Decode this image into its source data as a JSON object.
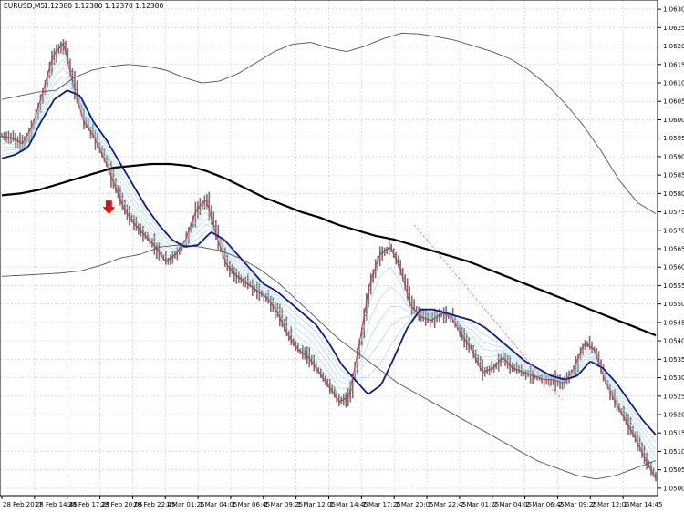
{
  "header": {
    "symbol_timeframe": "EURUSD,M5",
    "ohlc": "1.12380 1.12380 1.12370 1.12380"
  },
  "chart_data": {
    "type": "line",
    "symbol": "EURUSD",
    "timeframe": "M5",
    "grid": true,
    "ylim": [
      1.04985,
      1.0633
    ],
    "y_ticks": [
      1.06305,
      1.06255,
      1.06205,
      1.06155,
      1.06105,
      1.06055,
      1.06005,
      1.05955,
      1.05905,
      1.05855,
      1.05805,
      1.05755,
      1.05705,
      1.05655,
      1.05605,
      1.05555,
      1.05505,
      1.05455,
      1.05405,
      1.05355,
      1.05305,
      1.05255,
      1.05205,
      1.05155,
      1.05105,
      1.05055,
      1.05005
    ],
    "x_ticks": [
      "28 Feb 2017",
      "28 Feb 14:45",
      "28 Feb 17:25",
      "28 Feb 20:05",
      "28 Feb 22:45",
      "1 Mar 01:25",
      "1 Mar 04:05",
      "1 Mar 06:45",
      "1 Mar 09:25",
      "1 Mar 12:05",
      "1 Mar 14:45",
      "1 Mar 17:25",
      "1 Mar 20:05",
      "1 Mar 22:45",
      "2 Mar 01:25",
      "2 Mar 04:05",
      "2 Mar 06:45",
      "2 Mar 09:25",
      "2 Mar 12:05",
      "2 Mar 14:45"
    ],
    "n_bars": 288,
    "series": [
      {
        "values": [
          1.0596,
          1.05955,
          1.0594,
          1.0599,
          1.0608,
          1.0618,
          1.06215,
          1.061,
          1.06,
          1.0596,
          1.059,
          1.0583,
          1.0576,
          1.0572,
          1.0569,
          1.0566,
          1.0562,
          1.0564,
          1.0568,
          1.0576,
          1.0579,
          1.0569,
          1.0561,
          1.0558,
          1.0556,
          1.0554,
          1.0552,
          1.0548,
          1.0542,
          1.0538,
          1.0536,
          1.0532,
          1.0528,
          1.0524,
          1.05255,
          1.054,
          1.0556,
          1.0564,
          1.0566,
          1.056,
          1.055,
          1.0547,
          1.0546,
          1.0548,
          1.0547,
          1.0542,
          1.0538,
          1.0532,
          1.0533,
          1.0536,
          1.0533,
          1.0532,
          1.0531,
          1.053,
          1.053,
          1.0529,
          1.0533,
          1.054,
          1.0538,
          1.053,
          1.0524,
          1.0519,
          1.0514,
          1.0508,
          1.0503
        ]
      },
      {
        "values": [
          1.059,
          1.0591,
          1.0593,
          1.06,
          1.0606,
          1.06085,
          1.0607,
          1.06,
          1.0595,
          1.0589,
          1.0583,
          1.0577,
          1.0572,
          1.0568,
          1.0566,
          1.05665,
          1.057,
          1.0568,
          1.0564,
          1.056,
          1.0556,
          1.0554,
          1.0551,
          1.0548,
          1.0545,
          1.054,
          1.0534,
          1.053,
          1.0526,
          1.05285,
          1.0536,
          1.0544,
          1.0549,
          1.0549,
          1.0548,
          1.0547,
          1.0546,
          1.0544,
          1.0541,
          1.0538,
          1.0535,
          1.0533,
          1.0531,
          1.053,
          1.0531,
          1.0535,
          1.0533,
          1.0529,
          1.0524,
          1.0519,
          1.0515
        ]
      },
      {
        "values": [
          1.058,
          1.05805,
          1.05815,
          1.0583,
          1.05845,
          1.0586,
          1.05875,
          1.0588,
          1.05885,
          1.05885,
          1.0588,
          1.05865,
          1.05845,
          1.0582,
          1.05795,
          1.05775,
          1.05755,
          1.0574,
          1.0572,
          1.05705,
          1.0569,
          1.0568,
          1.05665,
          1.0565,
          1.05635,
          1.0562,
          1.056,
          1.0558,
          1.0556,
          1.0554,
          1.0552,
          1.055,
          1.0548,
          1.0546,
          1.0544,
          1.0542
        ]
      },
      {
        "values": [
          1.0606,
          1.0607,
          1.0608,
          1.06085,
          1.0612,
          1.0614,
          1.0615,
          1.06155,
          1.0615,
          1.0614,
          1.0612,
          1.06105,
          1.0611,
          1.0613,
          1.0616,
          1.0619,
          1.0621,
          1.06215,
          1.062,
          1.0619,
          1.06205,
          1.06225,
          1.0624,
          1.06238,
          1.0623,
          1.0622,
          1.06205,
          1.0619,
          1.0617,
          1.0614,
          1.061,
          1.0605,
          1.0599,
          1.0592,
          1.0584,
          1.0578,
          1.0575
        ]
      },
      {
        "values": [
          1.0558,
          1.05583,
          1.05586,
          1.05589,
          1.05595,
          1.0561,
          1.0563,
          1.0564,
          1.0566,
          1.05665,
          1.0566,
          1.0565,
          1.0563,
          1.056,
          1.0556,
          1.0551,
          1.0546,
          1.0541,
          1.0537,
          1.0533,
          1.0529,
          1.0526,
          1.0523,
          1.052,
          1.0517,
          1.0514,
          1.0511,
          1.0508,
          1.0506,
          1.0504,
          1.0503,
          1.0504,
          1.0506,
          1.0508
        ]
      },
      {
        "values": [
          1.0572,
          1.0568,
          1.0564,
          1.056,
          1.0556,
          1.0552,
          1.0548,
          1.0544,
          1.054,
          1.0536,
          1.0532,
          1.0528,
          1.05245
        ]
      }
    ],
    "annotations": {
      "sell_arrow_price": 1.0576
    }
  }
}
